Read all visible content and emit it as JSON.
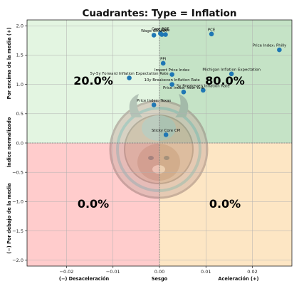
{
  "chart_data": {
    "type": "scatter",
    "title": "Cuadrantes: Type = Inflation",
    "xlim": [
      -0.0285,
      0.0285
    ],
    "ylim": [
      -2.1,
      2.1
    ],
    "xticks": [
      -0.02,
      -0.01,
      0.0,
      0.01,
      0.02
    ],
    "xtick_labels": [
      "−0.02",
      "−0.01",
      "0.00",
      "0.01",
      "0.02"
    ],
    "yticks": [
      -2.0,
      -1.5,
      -1.0,
      -0.5,
      0.0,
      0.5,
      1.0,
      1.5,
      2.0
    ],
    "ytick_labels": [
      "−2.0",
      "−1.5",
      "−1.0",
      "−0.5",
      "0.0",
      "0.5",
      "1.0",
      "1.5",
      "2.0"
    ],
    "x_axis_labels": {
      "left": "(−) Desaceleración",
      "center": "Sesgo",
      "right": "Aceleración (+)"
    },
    "y_axis_labels": {
      "top": "Por encima de la media (+)",
      "center": "Índice normalizado",
      "bottom": "(−) Por debajo de la media"
    },
    "grid": true,
    "quadrants": {
      "top_left": {
        "label": "20.0%",
        "color": "#e3f5e1"
      },
      "top_right": {
        "label": "80.0%",
        "color": "#c5e3c6"
      },
      "bottom_left": {
        "label": "0.0%",
        "color": "#ffcccc"
      },
      "bottom_right": {
        "label": "0.0%",
        "color": "#fde6c4"
      }
    },
    "point_color": "#1f77b4",
    "points": [
      {
        "label": "Core PCE",
        "x": 0.0002,
        "y": 1.87
      },
      {
        "label": "Wage Growth",
        "x": -0.0012,
        "y": 1.84
      },
      {
        "label": "PPI Core",
        "x": 0.0005,
        "y": 1.85
      },
      {
        "label": "CPI",
        "x": 0.0013,
        "y": 1.85
      },
      {
        "label": "PCE",
        "x": 0.0112,
        "y": 1.86
      },
      {
        "label": "Price Index: Philly",
        "x": 0.0258,
        "y": 1.59
      },
      {
        "label": "PPI",
        "x": 0.0008,
        "y": 1.36
      },
      {
        "label": "Import Price Index",
        "x": 0.0027,
        "y": 1.17
      },
      {
        "label": "Michigan Inflation Expectation",
        "x": 0.0155,
        "y": 1.18
      },
      {
        "label": "5y-5y Forward Inflation Expectation Rate",
        "x": -0.0065,
        "y": 1.11
      },
      {
        "label": "10y Breakeven Inflation Rate",
        "x": 0.0027,
        "y": 1.0
      },
      {
        "label": "Price Index: New York",
        "x": 0.0052,
        "y": 0.87
      },
      {
        "label": "5y Breakeven Inflation Rate",
        "x": 0.0094,
        "y": 0.9
      },
      {
        "label": "Price Index: Texas",
        "x": -0.0012,
        "y": 0.65
      },
      {
        "label": "Sticky Core CPI",
        "x": 0.0014,
        "y": 0.14
      }
    ]
  }
}
